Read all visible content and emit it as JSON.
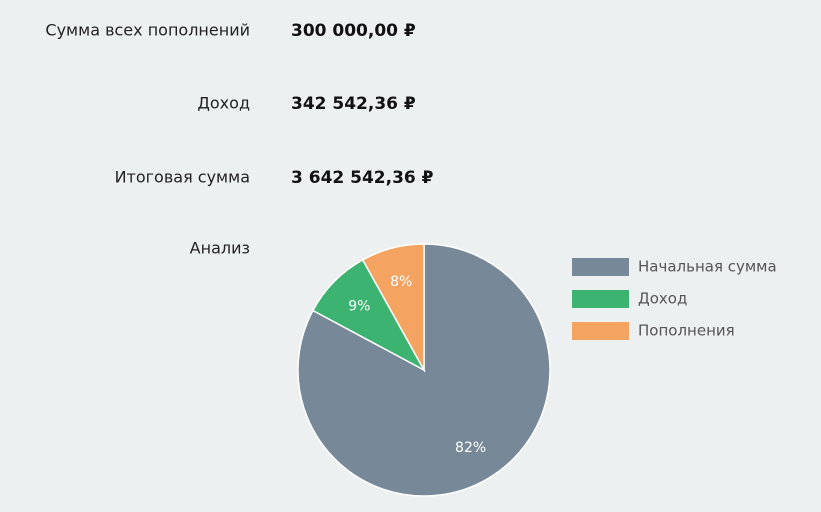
{
  "rows": [
    {
      "label": "Сумма всех пополнений",
      "value": "300 000,00 ₽"
    },
    {
      "label": "Доход",
      "value": "342 542,36 ₽"
    },
    {
      "label": "Итоговая сумма",
      "value": "3 642 542,36 ₽"
    }
  ],
  "analysis_label": "Анализ",
  "chart_data": {
    "type": "pie",
    "categories": [
      "Начальная сумма",
      "Доход",
      "Пополнения"
    ],
    "values": [
      82,
      9,
      8
    ],
    "value_labels": [
      "82%",
      "9%",
      "8%"
    ],
    "colors": [
      "#778899",
      "#3cb371",
      "#f4a460"
    ]
  }
}
